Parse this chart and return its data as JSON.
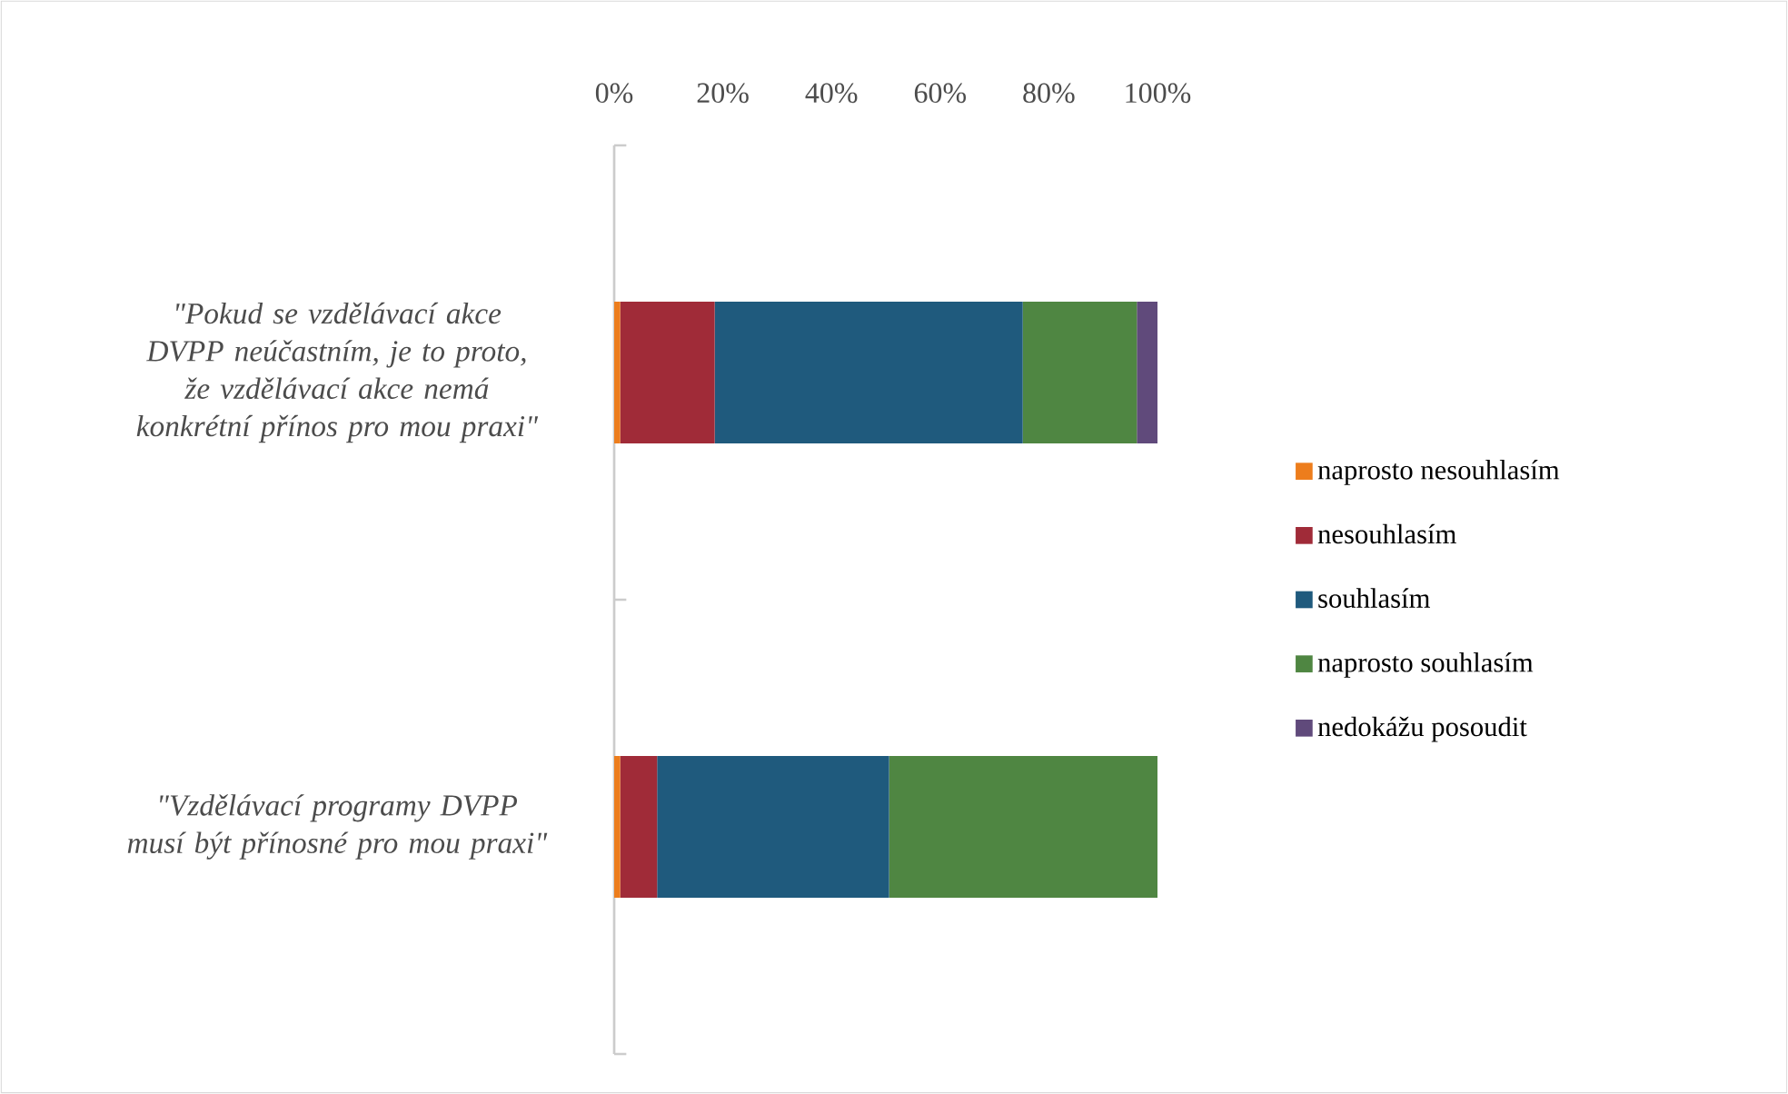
{
  "chart_data": {
    "type": "bar",
    "orientation": "horizontal",
    "stacked": true,
    "categories": [
      "\"Pokud se vzdělávací akce DVPP neúčastním, je to proto, že vzdělávací akce nemá konkrétní přínos pro mou praxi\"",
      "\"Vzdělávací programy DVPP musí být přínosné pro mou praxi\""
    ],
    "series": [
      {
        "name": "naprosto nesouhlasím",
        "color": "#ed7d1c",
        "values": [
          1.1,
          1.1
        ]
      },
      {
        "name": "nesouhlasím",
        "color": "#a02b38",
        "values": [
          17.4,
          6.8
        ]
      },
      {
        "name": "souhlasím",
        "color": "#1f5a7d",
        "values": [
          56.7,
          42.7
        ]
      },
      {
        "name": "naprosto souhlasím",
        "color": "#4f8642",
        "values": [
          21.0,
          49.4
        ]
      },
      {
        "name": "nedokážu posoudit",
        "color": "#604a7b",
        "values": [
          3.9,
          0
        ]
      }
    ],
    "xlim": [
      0,
      100
    ],
    "xticks": [
      {
        "value": 0,
        "label": "0%"
      },
      {
        "value": 20,
        "label": "20%"
      },
      {
        "value": 40,
        "label": "40%"
      },
      {
        "value": 60,
        "label": "60%"
      },
      {
        "value": 80,
        "label": "80%"
      },
      {
        "value": 100,
        "label": "100%"
      }
    ],
    "legend": "right",
    "grid": false
  }
}
